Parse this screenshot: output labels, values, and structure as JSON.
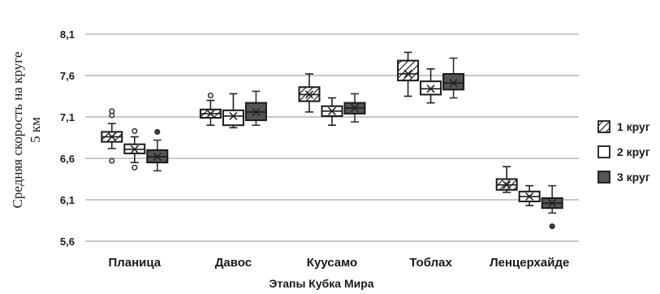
{
  "chart_data": {
    "type": "boxplot",
    "xlabel": "Этапы Кубка Мира",
    "ylabel_lines": [
      "Средняя скорость на круге",
      "5 км"
    ],
    "yticks": [
      "5,6",
      "6,1",
      "6,6",
      "7,1",
      "7,6",
      "8,1"
    ],
    "ylim": [
      5.6,
      8.1
    ],
    "grid": "horizontal",
    "legend_position": "right",
    "categories": [
      "Планица",
      "Давос",
      "Куусамо",
      "Тоблах",
      "Ленцерхайде"
    ],
    "series": [
      {
        "name": "1 круг",
        "fill": "hatched",
        "boxes": [
          {
            "min": 6.72,
            "q1": 6.8,
            "median": 6.86,
            "mean": 6.86,
            "q3": 6.92,
            "max": 7.02,
            "outliers": [
              6.57,
              7.12,
              7.17
            ]
          },
          {
            "min": 7.0,
            "q1": 7.09,
            "median": 7.14,
            "mean": 7.14,
            "q3": 7.19,
            "max": 7.3,
            "outliers": [
              7.36
            ]
          },
          {
            "min": 7.16,
            "q1": 7.29,
            "median": 7.37,
            "mean": 7.37,
            "q3": 7.46,
            "max": 7.62,
            "outliers": []
          },
          {
            "min": 7.35,
            "q1": 7.54,
            "median": 7.62,
            "mean": 7.62,
            "q3": 7.78,
            "max": 7.88,
            "outliers": []
          },
          {
            "min": 6.19,
            "q1": 6.22,
            "median": 6.28,
            "mean": 6.28,
            "q3": 6.35,
            "max": 6.5,
            "outliers": []
          }
        ]
      },
      {
        "name": "2 круг",
        "fill": "white",
        "boxes": [
          {
            "min": 6.55,
            "q1": 6.66,
            "median": 6.71,
            "mean": 6.71,
            "q3": 6.77,
            "max": 6.86,
            "outliers": [
              6.49,
              6.93
            ]
          },
          {
            "min": 6.97,
            "q1": 7.0,
            "median": 7.11,
            "mean": 7.11,
            "q3": 7.18,
            "max": 7.38,
            "outliers": []
          },
          {
            "min": 7.0,
            "q1": 7.11,
            "median": 7.17,
            "mean": 7.17,
            "q3": 7.23,
            "max": 7.33,
            "outliers": []
          },
          {
            "min": 7.27,
            "q1": 7.37,
            "median": 7.44,
            "mean": 7.44,
            "q3": 7.53,
            "max": 7.68,
            "outliers": []
          },
          {
            "min": 6.03,
            "q1": 6.08,
            "median": 6.14,
            "mean": 6.14,
            "q3": 6.2,
            "max": 6.27,
            "outliers": []
          }
        ]
      },
      {
        "name": "3 круг",
        "fill": "dark-gray",
        "boxes": [
          {
            "min": 6.45,
            "q1": 6.55,
            "median": 6.62,
            "mean": 6.62,
            "q3": 6.7,
            "max": 6.82,
            "outliers": [
              6.92
            ]
          },
          {
            "min": 7.0,
            "q1": 7.06,
            "median": 7.16,
            "mean": 7.16,
            "q3": 7.27,
            "max": 7.41,
            "outliers": []
          },
          {
            "min": 7.04,
            "q1": 7.14,
            "median": 7.21,
            "mean": 7.21,
            "q3": 7.27,
            "max": 7.38,
            "outliers": []
          },
          {
            "min": 7.33,
            "q1": 7.43,
            "median": 7.51,
            "mean": 7.51,
            "q3": 7.62,
            "max": 7.81,
            "outliers": []
          },
          {
            "min": 5.94,
            "q1": 6.0,
            "median": 6.06,
            "mean": 6.06,
            "q3": 6.12,
            "max": 6.27,
            "outliers": [
              5.78
            ]
          }
        ]
      }
    ]
  }
}
